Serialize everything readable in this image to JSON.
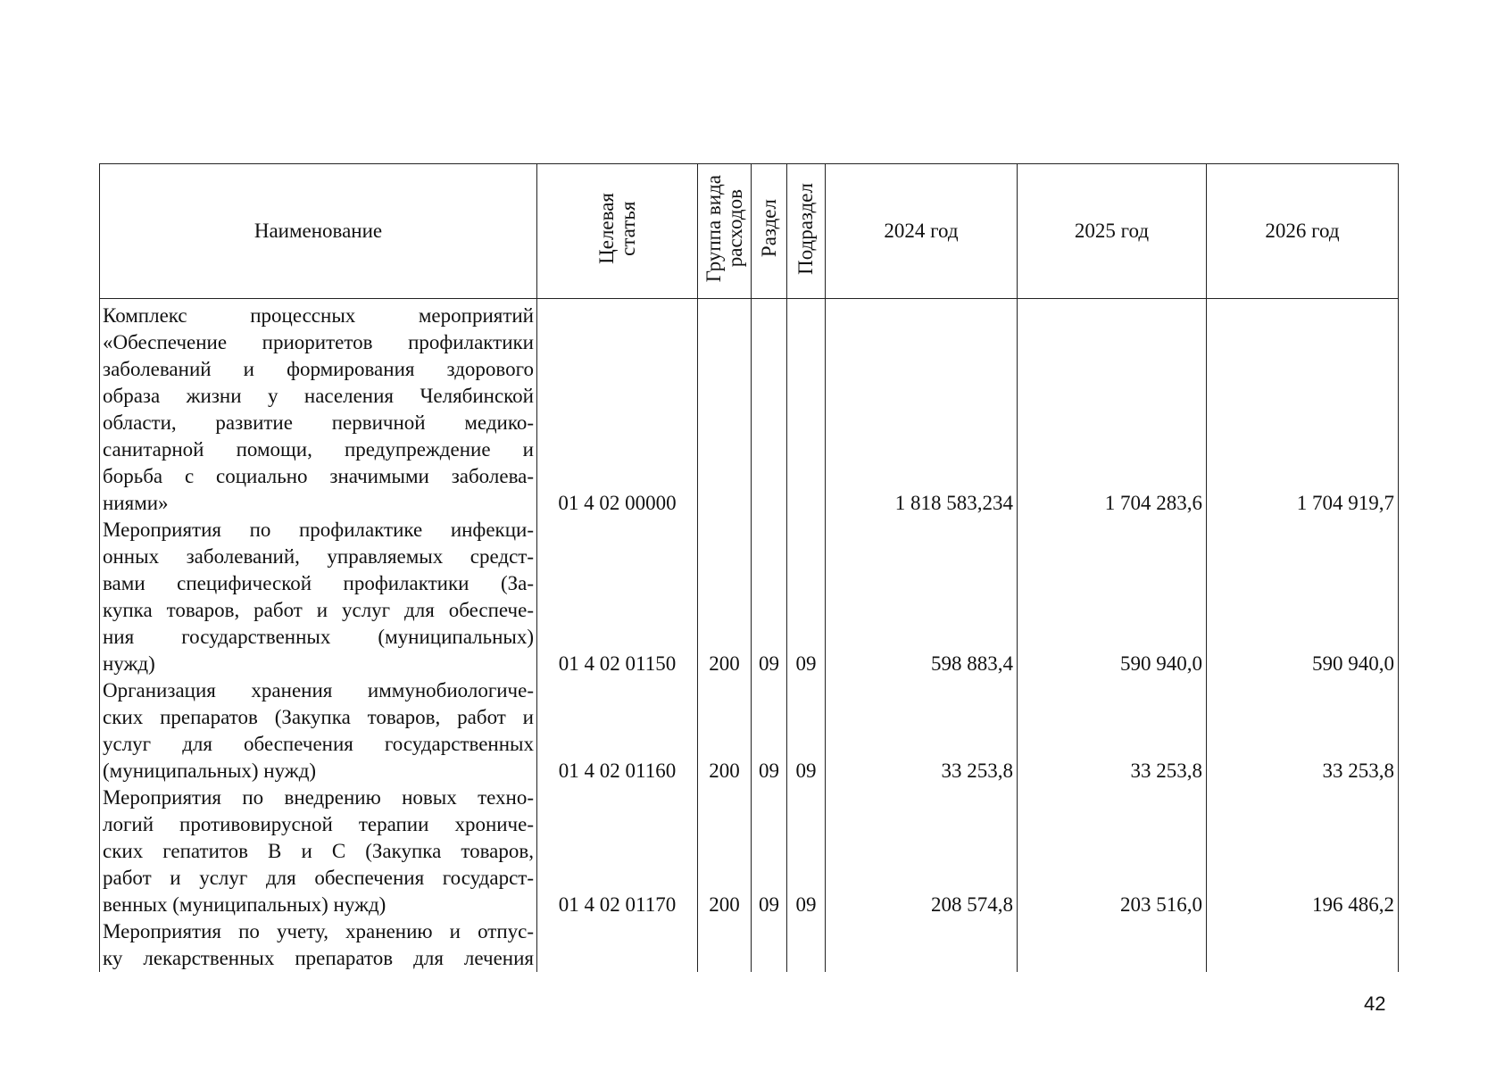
{
  "table": {
    "header": {
      "name": "Наименование",
      "target": [
        "Целевая",
        "статья"
      ],
      "group": [
        "Группа вида",
        "расходов"
      ],
      "section": "Раздел",
      "subsection": "Подраздел",
      "y2024": "2024 год",
      "y2025": "2025 год",
      "y2026": "2026 год"
    },
    "rows": [
      {
        "name": [
          "Комплекс процессных мероприятий",
          "«Обеспечение приоритетов профилактики",
          "заболеваний и формирования здорового",
          "образа жизни у населения Челябинской",
          "области, развитие первичной медико-",
          "санитарной помощи, предупреждение и",
          "борьба с социально значимыми заболева-",
          "ниями»"
        ],
        "target": "01 4 02 00000",
        "y2024": "1 818 583,234",
        "y2025": "1 704 283,6",
        "y2026": "1 704 919,7"
      },
      {
        "name": [
          "Мероприятия по профилактике инфекци-",
          "онных заболеваний, управляемых средст-",
          "вами специфической профилактики (За-",
          "купка товаров, работ и услуг для обеспече-",
          "ния государственных (муниципальных)",
          "нужд)"
        ],
        "target": "01 4 02 01150",
        "group": "200",
        "section": "09",
        "subsection": "09",
        "y2024": "598 883,4",
        "y2025": "590 940,0",
        "y2026": "590 940,0"
      },
      {
        "name": [
          "Организация хранения иммунобиологиче-",
          "ских препаратов (Закупка товаров, работ и",
          "услуг для обеспечения государственных",
          "(муниципальных) нужд)"
        ],
        "target": "01 4 02 01160",
        "group": "200",
        "section": "09",
        "subsection": "09",
        "y2024": "33 253,8",
        "y2025": "33 253,8",
        "y2026": "33 253,8"
      },
      {
        "name": [
          "Мероприятия по внедрению новых техно-",
          "логий противовирусной терапии хрониче-",
          "ских гепатитов B и C (Закупка товаров,",
          "работ и услуг для обеспечения государст-",
          "венных (муниципальных) нужд)"
        ],
        "target": "01 4 02 01170",
        "group": "200",
        "section": "09",
        "subsection": "09",
        "y2024": "208 574,8",
        "y2025": "203 516,0",
        "y2026": "196 486,2"
      },
      {
        "name": [
          "Мероприятия по учету, хранению и отпус-",
          "ку лекарственных препаратов для лечения"
        ]
      }
    ]
  },
  "page_number": "42"
}
